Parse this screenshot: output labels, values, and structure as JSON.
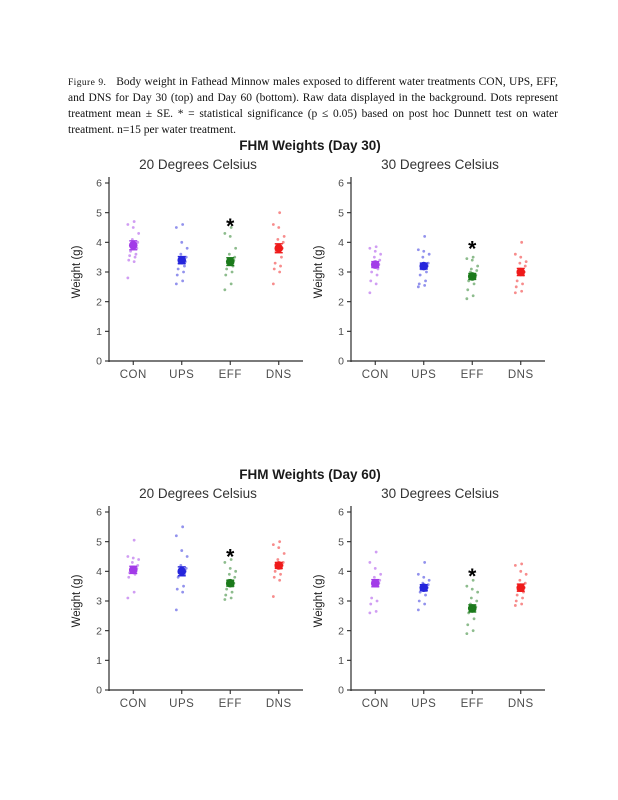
{
  "caption": {
    "label": "Figure 9.",
    "text": "Body weight in Fathead Minnow males exposed to different water treatments CON, UPS, EFF, and DNS for Day 30 (top) and Day 60 (bottom). Raw data displayed in the background. Dots represent treatment mean ± SE. * = statistical significance (p ≤ 0.05) based on post hoc Dunnett test on water treatment. n=15 per water treatment."
  },
  "style": {
    "axis_color": "#2b2b2b",
    "tick_label_color": "#4d4d4d",
    "category_label_color": "#4d4d4d",
    "subtitle_color": "#333333",
    "ylabel_color": "#222222",
    "asterisk_color": "#000000",
    "raw_point_opacity": 0.5
  },
  "treatment_colors": {
    "CON": "#A23BE8",
    "UPS": "#2525DC",
    "EFF": "#1B7A1B",
    "DNS": "#EF1A1A"
  },
  "chart_data": [
    {
      "type": "scatter",
      "title": "FHM Weights (Day 30)",
      "ylabel": "Weight (g)",
      "ylim": [
        0,
        6
      ],
      "yticks": [
        0,
        1,
        2,
        3,
        4,
        5,
        6
      ],
      "categories": [
        "CON",
        "UPS",
        "EFF",
        "DNS"
      ],
      "grid": false,
      "legend": "none",
      "panels": [
        {
          "subtitle": "20 Degrees Celsius",
          "groups": [
            {
              "category": "CON",
              "color": "#A23BE8",
              "mean": 3.9,
              "se": 0.15,
              "significant": false,
              "asterisk_y": null,
              "raw": [
                2.8,
                3.35,
                3.4,
                3.5,
                3.55,
                3.6,
                3.7,
                3.8,
                3.9,
                4.0,
                4.1,
                4.3,
                4.5,
                4.6,
                4.7
              ]
            },
            {
              "category": "UPS",
              "color": "#2525DC",
              "mean": 3.4,
              "se": 0.12,
              "significant": false,
              "asterisk_y": null,
              "raw": [
                2.6,
                2.7,
                2.9,
                3.0,
                3.1,
                3.2,
                3.3,
                3.35,
                3.4,
                3.5,
                3.6,
                3.8,
                4.0,
                4.5,
                4.6
              ]
            },
            {
              "category": "EFF",
              "color": "#1B7A1B",
              "mean": 3.35,
              "se": 0.13,
              "significant": true,
              "asterisk_y": 4.65,
              "raw": [
                2.4,
                2.6,
                2.9,
                3.0,
                3.1,
                3.2,
                3.3,
                3.4,
                3.45,
                3.5,
                3.6,
                3.8,
                4.2,
                4.3,
                4.5
              ]
            },
            {
              "category": "DNS",
              "color": "#EF1A1A",
              "mean": 3.8,
              "se": 0.15,
              "significant": false,
              "asterisk_y": null,
              "raw": [
                2.6,
                3.0,
                3.1,
                3.2,
                3.3,
                3.5,
                3.7,
                3.8,
                3.9,
                4.0,
                4.1,
                4.2,
                4.5,
                4.6,
                5.0
              ]
            }
          ]
        },
        {
          "subtitle": "30 Degrees Celsius",
          "groups": [
            {
              "category": "CON",
              "color": "#A23BE8",
              "mean": 3.25,
              "se": 0.1,
              "significant": false,
              "asterisk_y": null,
              "raw": [
                2.3,
                2.6,
                2.7,
                2.9,
                3.0,
                3.1,
                3.2,
                3.25,
                3.3,
                3.4,
                3.5,
                3.6,
                3.7,
                3.8,
                3.85
              ]
            },
            {
              "category": "UPS",
              "color": "#2525DC",
              "mean": 3.2,
              "se": 0.1,
              "significant": false,
              "asterisk_y": null,
              "raw": [
                2.5,
                2.55,
                2.6,
                2.7,
                2.9,
                3.0,
                3.1,
                3.2,
                3.25,
                3.3,
                3.5,
                3.6,
                3.7,
                3.75,
                4.2
              ]
            },
            {
              "category": "EFF",
              "color": "#1B7A1B",
              "mean": 2.85,
              "se": 0.1,
              "significant": true,
              "asterisk_y": 3.9,
              "raw": [
                2.1,
                2.2,
                2.4,
                2.6,
                2.7,
                2.8,
                2.85,
                2.9,
                3.0,
                3.05,
                3.1,
                3.2,
                3.4,
                3.45,
                3.5
              ]
            },
            {
              "category": "DNS",
              "color": "#EF1A1A",
              "mean": 3.0,
              "se": 0.12,
              "significant": false,
              "asterisk_y": null,
              "raw": [
                2.3,
                2.35,
                2.5,
                2.6,
                2.7,
                2.9,
                2.95,
                3.0,
                3.1,
                3.2,
                3.3,
                3.35,
                3.5,
                3.6,
                4.0
              ]
            }
          ]
        }
      ]
    },
    {
      "type": "scatter",
      "title": "FHM Weights (Day 60)",
      "ylabel": "Weight (g)",
      "ylim": [
        0,
        6
      ],
      "yticks": [
        0,
        1,
        2,
        3,
        4,
        5,
        6
      ],
      "categories": [
        "CON",
        "UPS",
        "EFF",
        "DNS"
      ],
      "grid": false,
      "legend": "none",
      "panels": [
        {
          "subtitle": "20 Degrees Celsius",
          "groups": [
            {
              "category": "CON",
              "color": "#A23BE8",
              "mean": 4.05,
              "se": 0.12,
              "significant": false,
              "asterisk_y": null,
              "raw": [
                3.1,
                3.3,
                3.8,
                3.9,
                3.95,
                4.0,
                4.05,
                4.1,
                4.15,
                4.2,
                4.3,
                4.4,
                4.45,
                4.5,
                5.05
              ]
            },
            {
              "category": "UPS",
              "color": "#2525DC",
              "mean": 4.0,
              "se": 0.15,
              "significant": false,
              "asterisk_y": null,
              "raw": [
                2.7,
                3.3,
                3.4,
                3.5,
                3.8,
                3.9,
                3.95,
                4.0,
                4.05,
                4.1,
                4.2,
                4.5,
                4.7,
                5.2,
                5.5
              ]
            },
            {
              "category": "EFF",
              "color": "#1B7A1B",
              "mean": 3.6,
              "se": 0.1,
              "significant": true,
              "asterisk_y": 4.6,
              "raw": [
                3.05,
                3.1,
                3.2,
                3.3,
                3.4,
                3.5,
                3.55,
                3.6,
                3.7,
                3.8,
                3.9,
                4.0,
                4.1,
                4.3,
                4.4
              ]
            },
            {
              "category": "DNS",
              "color": "#EF1A1A",
              "mean": 4.2,
              "se": 0.1,
              "significant": false,
              "asterisk_y": null,
              "raw": [
                3.15,
                3.7,
                3.8,
                3.9,
                4.0,
                4.1,
                4.15,
                4.2,
                4.25,
                4.3,
                4.4,
                4.6,
                4.8,
                4.9,
                5.0
              ]
            }
          ]
        },
        {
          "subtitle": "30 Degrees Celsius",
          "groups": [
            {
              "category": "CON",
              "color": "#A23BE8",
              "mean": 3.6,
              "se": 0.12,
              "significant": false,
              "asterisk_y": null,
              "raw": [
                2.6,
                2.65,
                2.9,
                3.0,
                3.1,
                3.5,
                3.55,
                3.6,
                3.65,
                3.7,
                3.8,
                3.9,
                4.1,
                4.3,
                4.65
              ]
            },
            {
              "category": "UPS",
              "color": "#2525DC",
              "mean": 3.45,
              "se": 0.1,
              "significant": false,
              "asterisk_y": null,
              "raw": [
                2.7,
                2.9,
                3.0,
                3.2,
                3.3,
                3.35,
                3.4,
                3.45,
                3.5,
                3.55,
                3.6,
                3.7,
                3.8,
                3.9,
                4.3
              ]
            },
            {
              "category": "EFF",
              "color": "#1B7A1B",
              "mean": 2.75,
              "se": 0.12,
              "significant": true,
              "asterisk_y": 3.95,
              "raw": [
                1.9,
                2.0,
                2.2,
                2.4,
                2.6,
                2.7,
                2.75,
                2.8,
                2.9,
                3.0,
                3.1,
                3.3,
                3.4,
                3.5,
                3.7
              ]
            },
            {
              "category": "DNS",
              "color": "#EF1A1A",
              "mean": 3.45,
              "se": 0.12,
              "significant": false,
              "asterisk_y": null,
              "raw": [
                2.85,
                2.9,
                3.0,
                3.1,
                3.2,
                3.3,
                3.4,
                3.45,
                3.5,
                3.6,
                3.7,
                3.9,
                4.0,
                4.2,
                4.25
              ]
            }
          ]
        }
      ]
    }
  ]
}
